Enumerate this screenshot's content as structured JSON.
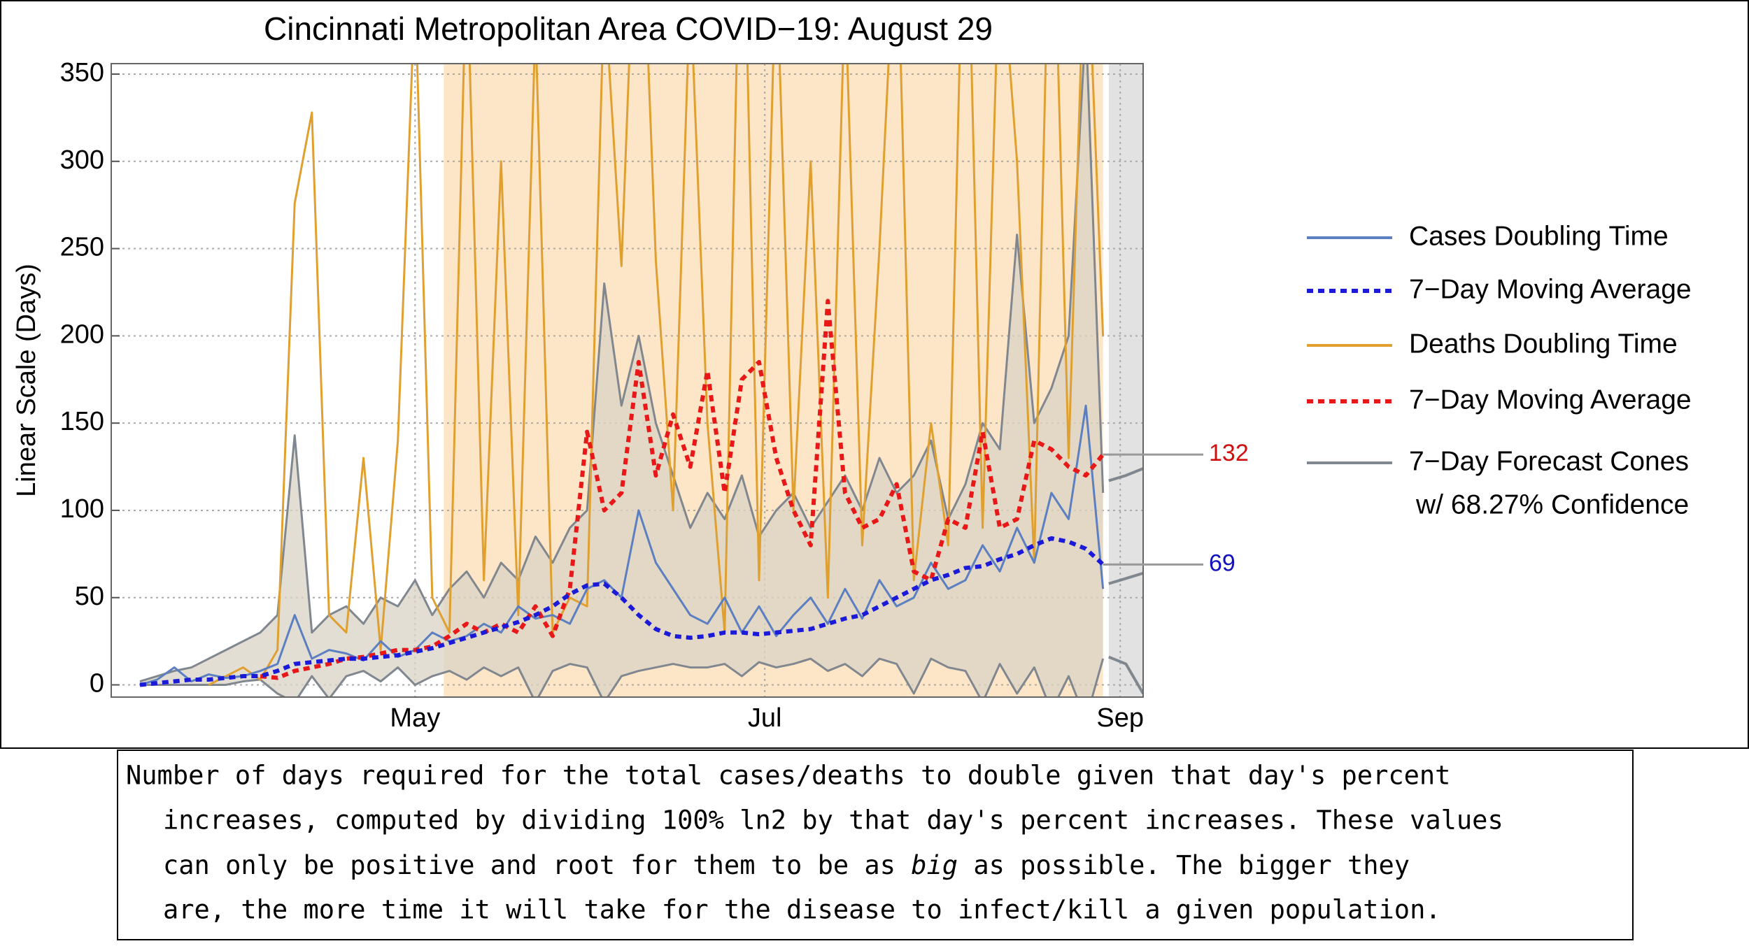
{
  "chart_data": {
    "type": "line",
    "title": "Cincinnati Metropolitan Area COVID−19: August 29",
    "ylabel": "Linear Scale (Days)",
    "x": [
      74,
      77,
      80,
      83,
      86,
      89,
      92,
      95,
      98,
      101,
      104,
      107,
      110,
      113,
      116,
      119,
      122,
      125,
      128,
      131,
      134,
      137,
      140,
      143,
      146,
      149,
      152,
      155,
      158,
      161,
      164,
      167,
      170,
      173,
      176,
      179,
      182,
      185,
      188,
      191,
      194,
      197,
      200,
      203,
      206,
      209,
      212,
      215,
      218,
      221,
      224,
      227,
      230,
      233,
      236,
      239,
      242
    ],
    "xlim": [
      69,
      249
    ],
    "xticks": [
      {
        "value": 122,
        "label": "May"
      },
      {
        "value": 183,
        "label": "Jul"
      },
      {
        "value": 245,
        "label": "Sep"
      }
    ],
    "ylim": [
      -7,
      356
    ],
    "yticks": [
      0,
      50,
      100,
      150,
      200,
      250,
      300,
      350
    ],
    "grid": true,
    "bands": [
      {
        "x0": 127,
        "x1": 242,
        "color": "#fde6c8"
      },
      {
        "x0": 243,
        "x1": 249,
        "color": "#e2e2e2"
      }
    ],
    "series": [
      {
        "name": "Cases Doubling Time",
        "color": "#5b7fc0",
        "dash": false,
        "values": [
          0,
          3,
          10,
          2,
          6,
          4,
          5,
          8,
          12,
          40,
          15,
          20,
          18,
          14,
          25,
          16,
          20,
          30,
          25,
          28,
          35,
          30,
          45,
          38,
          40,
          35,
          55,
          60,
          50,
          100,
          70,
          55,
          40,
          35,
          50,
          30,
          45,
          28,
          40,
          50,
          35,
          55,
          38,
          60,
          45,
          50,
          70,
          55,
          60,
          80,
          65,
          90,
          70,
          110,
          95,
          160,
          55
        ]
      },
      {
        "name": "7−Day Moving Average",
        "color": "#1a1ad8",
        "dash": true,
        "values": [
          0,
          1,
          2,
          3,
          3,
          4,
          5,
          5,
          8,
          12,
          13,
          14,
          15,
          15,
          16,
          17,
          19,
          21,
          24,
          27,
          30,
          33,
          36,
          40,
          45,
          52,
          57,
          58,
          50,
          40,
          32,
          28,
          27,
          28,
          30,
          30,
          29,
          30,
          31,
          32,
          35,
          38,
          40,
          45,
          50,
          55,
          60,
          63,
          67,
          68,
          72,
          75,
          80,
          84,
          82,
          78,
          69
        ]
      },
      {
        "name": "Deaths Doubling Time",
        "color": "#e0a030",
        "dash": false,
        "values": [
          null,
          null,
          null,
          null,
          0,
          5,
          10,
          3,
          20,
          276,
          328,
          40,
          30,
          130,
          20,
          140,
          400,
          50,
          30,
          420,
          60,
          300,
          40,
          380,
          30,
          50,
          45,
          400,
          240,
          500,
          243,
          100,
          400,
          150,
          30,
          500,
          60,
          420,
          100,
          300,
          50,
          400,
          80,
          250,
          450,
          60,
          150,
          80,
          500,
          90,
          430,
          300,
          70,
          500,
          130,
          450,
          200
        ]
      },
      {
        "name": "7−Day Moving Average",
        "color": "#e81818",
        "dash": true,
        "values": [
          null,
          null,
          null,
          null,
          null,
          null,
          null,
          5,
          4,
          8,
          10,
          12,
          15,
          16,
          18,
          20,
          20,
          22,
          28,
          35,
          30,
          35,
          30,
          45,
          28,
          55,
          145,
          100,
          110,
          185,
          120,
          155,
          125,
          180,
          110,
          175,
          185,
          130,
          100,
          80,
          220,
          110,
          90,
          95,
          115,
          65,
          60,
          95,
          90,
          145,
          90,
          95,
          140,
          135,
          125,
          120,
          132
        ]
      },
      {
        "name": "7−Day Forecast Cones",
        "name_2": "w/ 68.27% Confidence",
        "color": "#80878f",
        "dash": false,
        "fill": "#d9d3c6",
        "values": [
          2,
          5,
          8,
          10,
          15,
          20,
          25,
          30,
          40,
          143,
          30,
          40,
          45,
          35,
          50,
          45,
          60,
          40,
          55,
          65,
          50,
          70,
          60,
          85,
          70,
          90,
          100,
          230,
          160,
          200,
          150,
          120,
          90,
          110,
          95,
          120,
          85,
          100,
          110,
          90,
          105,
          120,
          100,
          130,
          110,
          120,
          140,
          95,
          115,
          150,
          135,
          258,
          150,
          170,
          200,
          380,
          110
        ],
        "lower": [
          0,
          0,
          0,
          0,
          0,
          0,
          2,
          3,
          -5,
          -10,
          5,
          -8,
          5,
          8,
          2,
          10,
          0,
          5,
          8,
          3,
          10,
          5,
          10,
          -10,
          8,
          12,
          10,
          -10,
          5,
          8,
          10,
          12,
          10,
          10,
          12,
          5,
          13,
          10,
          12,
          15,
          8,
          12,
          5,
          15,
          12,
          -5,
          15,
          10,
          8,
          -10,
          12,
          -5,
          10,
          -15,
          5,
          -20,
          15
        ]
      }
    ],
    "forecast": {
      "color": "#80878f",
      "x": [
        243,
        246,
        249
      ],
      "lines": [
        [
          117,
          120,
          124
        ],
        [
          58,
          61,
          64
        ],
        [
          16,
          12,
          -5
        ]
      ]
    },
    "annotations": [
      {
        "value": 132,
        "color": "#d01010"
      },
      {
        "value": 69,
        "color": "#1010c0"
      }
    ]
  },
  "caption": {
    "lines": [
      "Number of days required for the total cases/deaths to double given that day's percent",
      "increases, computed by dividing 100% ln2 by that day's percent increases. These values",
      {
        "before": "can only be positive and root for them to be as ",
        "italic": "big",
        "after": " as possible. The bigger they"
      },
      "are, the more time it will take for the disease to infect/kill a given population."
    ]
  }
}
